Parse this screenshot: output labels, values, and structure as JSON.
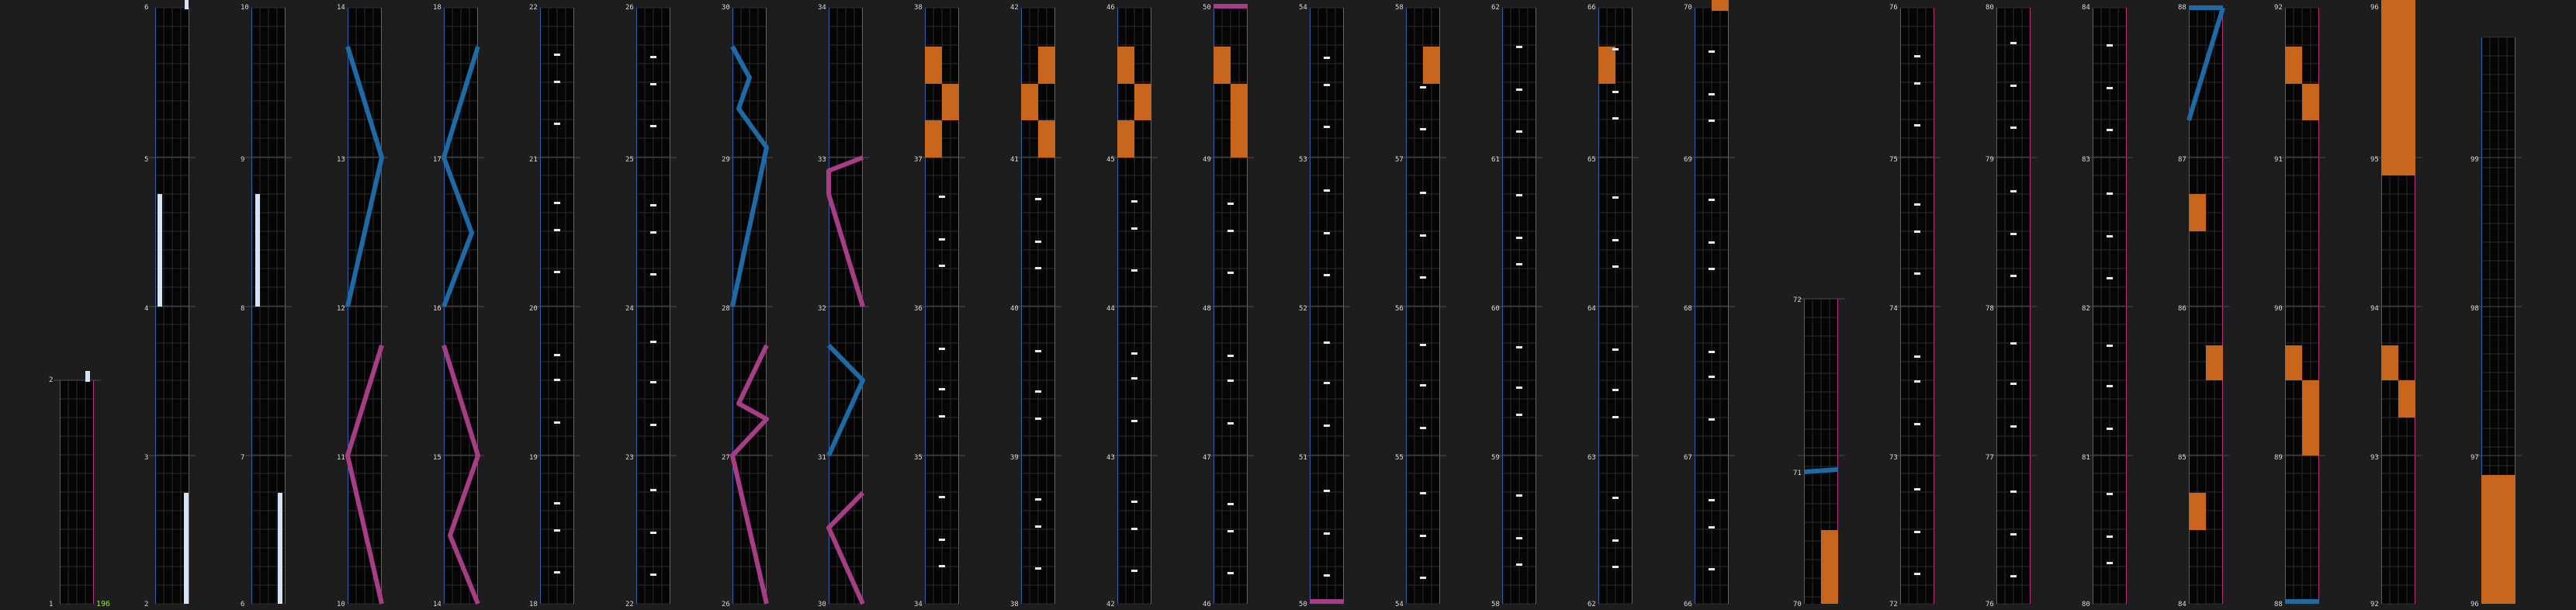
{
  "colors": {
    "background": "#1d1d1d",
    "column_bg": "#050505",
    "grid_line": "#2b2b2b",
    "left_rule": "#2f64a8",
    "right_rule": "#b8357e",
    "row_line": "#4a4a4a",
    "blue_line": "#1d6aa5",
    "pink_line": "#a73d85",
    "orange_block": "#c8651d",
    "white_bar": "#d4e4f2",
    "white_mark": "#e8e8e8",
    "highlight_label": "#9be23a"
  },
  "indicator": {
    "label": "196"
  },
  "columns": [
    {
      "top": "",
      "bottom": "1",
      "labels": [
        "2"
      ]
    },
    {
      "top": "6",
      "bottom": "2",
      "labels": [
        "5",
        "4",
        "3"
      ]
    },
    {
      "top": "10",
      "bottom": "6",
      "labels": [
        "9",
        "8",
        "7"
      ]
    },
    {
      "top": "14",
      "bottom": "10",
      "labels": [
        "13",
        "12",
        "11"
      ]
    },
    {
      "top": "18",
      "bottom": "14",
      "labels": [
        "17",
        "16",
        "15"
      ]
    },
    {
      "top": "22",
      "bottom": "18",
      "labels": [
        "21",
        "20",
        "19"
      ]
    },
    {
      "top": "26",
      "bottom": "22",
      "labels": [
        "25",
        "24",
        "23"
      ]
    },
    {
      "top": "30",
      "bottom": "26",
      "labels": [
        "29",
        "28",
        "27"
      ]
    },
    {
      "top": "34",
      "bottom": "30",
      "labels": [
        "33",
        "32",
        "31"
      ]
    },
    {
      "top": "38",
      "bottom": "34",
      "labels": [
        "37",
        "36",
        "35"
      ]
    },
    {
      "top": "42",
      "bottom": "38",
      "labels": [
        "41",
        "40",
        "39"
      ]
    },
    {
      "top": "46",
      "bottom": "42",
      "labels": [
        "45",
        "44",
        "43"
      ]
    },
    {
      "top": "50",
      "bottom": "46",
      "labels": [
        "49",
        "48",
        "47"
      ]
    },
    {
      "top": "54",
      "bottom": "50",
      "labels": [
        "53",
        "52",
        "51"
      ]
    },
    {
      "top": "58",
      "bottom": "54",
      "labels": [
        "57",
        "56",
        "55"
      ]
    },
    {
      "top": "62",
      "bottom": "58",
      "labels": [
        "61",
        "60",
        "59"
      ]
    },
    {
      "top": "66",
      "bottom": "62",
      "labels": [
        "65",
        "64",
        "63"
      ]
    },
    {
      "top": "70",
      "bottom": "66",
      "labels": [
        "69",
        "68",
        "67"
      ]
    },
    {
      "top": "",
      "bottom": "70",
      "labels": [
        "72",
        "71"
      ]
    },
    {
      "top": "76",
      "bottom": "72",
      "labels": [
        "75",
        "74",
        "73"
      ]
    },
    {
      "top": "80",
      "bottom": "76",
      "labels": [
        "79",
        "78",
        "77"
      ]
    },
    {
      "top": "84",
      "bottom": "80",
      "labels": [
        "83",
        "82",
        "81"
      ]
    },
    {
      "top": "88",
      "bottom": "84",
      "labels": [
        "87",
        "86",
        "85"
      ]
    },
    {
      "top": "92",
      "bottom": "88",
      "labels": [
        "91",
        "90",
        "89"
      ]
    },
    {
      "top": "96",
      "bottom": "92",
      "labels": [
        "95",
        "94",
        "93"
      ]
    },
    {
      "top": "",
      "bottom": "96",
      "labels": [
        "99",
        "98",
        "97"
      ]
    }
  ]
}
